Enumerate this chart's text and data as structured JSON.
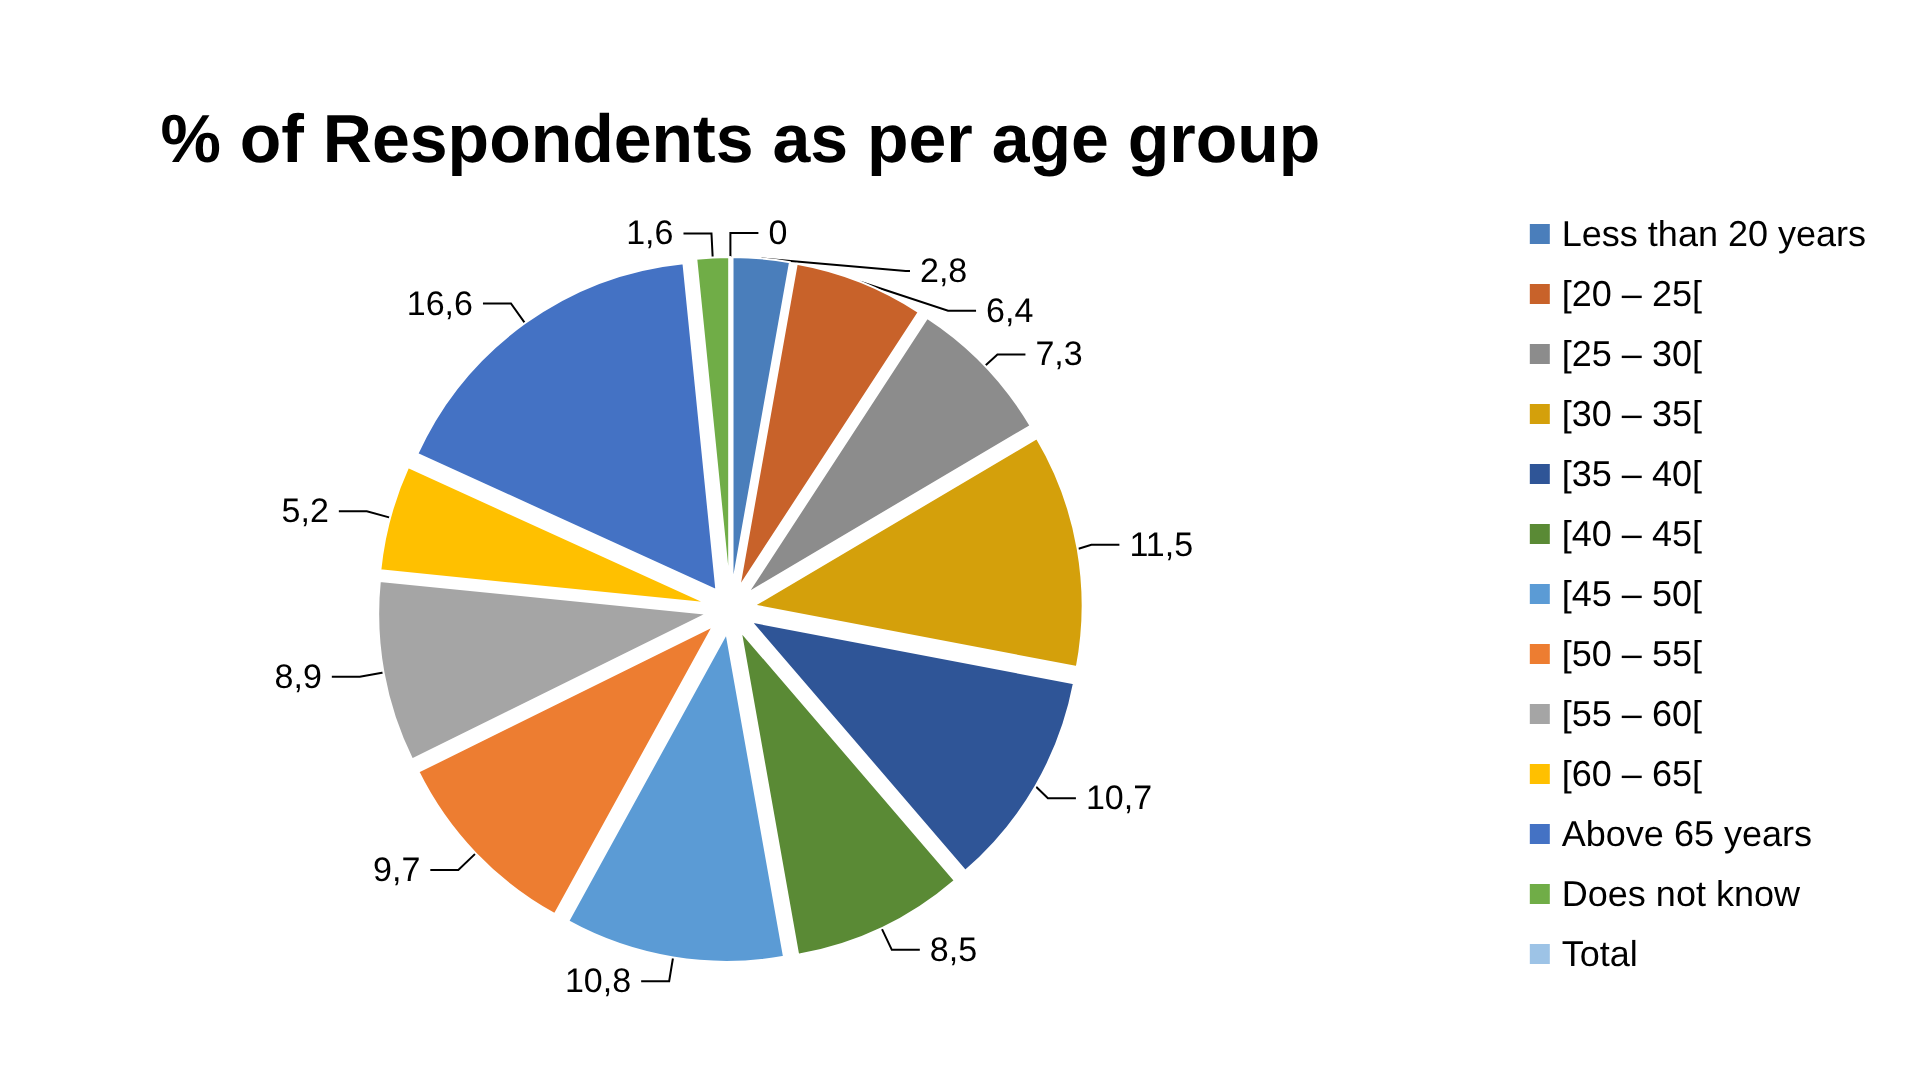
{
  "chart_data": {
    "type": "pie",
    "title": "% of Respondents as per age group",
    "categories": [
      "Less than 20 years",
      "[20 – 25[",
      "[25 – 30[",
      "[30 – 35[",
      "[35 – 40[",
      "[40 – 45[",
      "[45 – 50[",
      "[50 – 55[",
      "[55 – 60[",
      "[60 – 65[",
      "Above 65 years",
      "Does not know",
      "Total"
    ],
    "values": [
      2.8,
      6.4,
      7.3,
      11.5,
      10.7,
      8.5,
      10.8,
      9.7,
      8.9,
      5.2,
      16.6,
      1.6,
      0
    ],
    "value_labels": [
      "2,8",
      "6,4",
      "7,3",
      "11,5",
      "10,7",
      "8,5",
      "10,8",
      "9,7",
      "8,9",
      "5,2",
      "16,6",
      "1,6",
      "0"
    ],
    "colors": [
      "#4a7ebb",
      "#c8622a",
      "#8c8c8c",
      "#d4a00b",
      "#2f5597",
      "#5a8a35",
      "#5b9bd5",
      "#ed7d31",
      "#a5a5a5",
      "#ffc000",
      "#4472c4",
      "#70ad47",
      "#9dc3e6"
    ],
    "legend": "right"
  }
}
